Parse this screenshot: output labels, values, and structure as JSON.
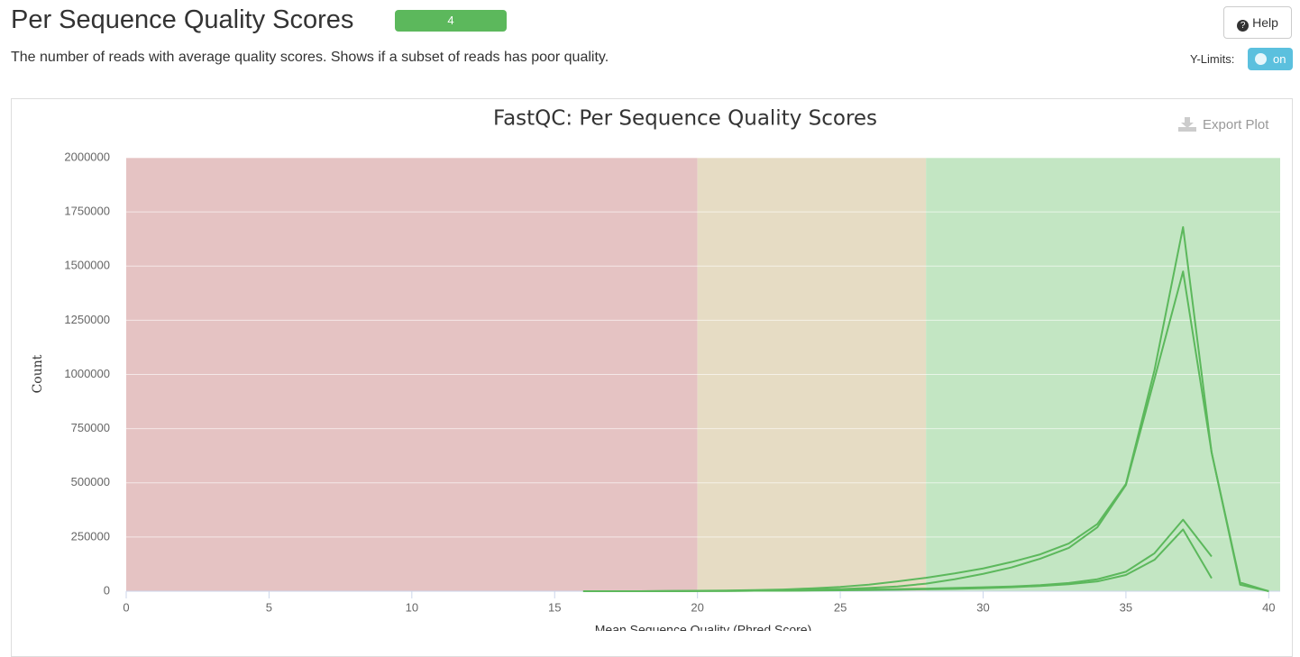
{
  "header": {
    "title": "Per Sequence Quality Scores",
    "badge": "4",
    "description": "The number of reads with average quality scores. Shows if a subset of reads has poor quality.",
    "help": "Help",
    "ylimits_label": "Y-Limits:",
    "toggle": "on"
  },
  "export": "Export Plot",
  "chart_data": {
    "type": "line",
    "title": "FastQC: Per Sequence Quality Scores",
    "x_label": "Mean Sequence Quality (Phred Score)",
    "y_label": "Count",
    "x": [
      16,
      17,
      18,
      19,
      20,
      21,
      22,
      23,
      24,
      25,
      26,
      27,
      28,
      29,
      30,
      31,
      32,
      33,
      34,
      35,
      36,
      37,
      38,
      39,
      40
    ],
    "series": [
      {
        "color": "#5cb85c",
        "values": [
          0,
          0,
          0,
          1000,
          2000,
          3000,
          5000,
          8000,
          13000,
          20000,
          30000,
          45000,
          62000,
          82000,
          105000,
          135000,
          170000,
          220000,
          310000,
          495000,
          1020000,
          1680000,
          640000,
          40000,
          0
        ]
      },
      {
        "color": "#5cb85c",
        "values": [
          0,
          0,
          0,
          1000,
          1000,
          2000,
          3000,
          5000,
          7000,
          10000,
          15000,
          22000,
          35000,
          55000,
          80000,
          110000,
          150000,
          200000,
          295000,
          490000,
          980000,
          1475000,
          640000,
          30000,
          0
        ]
      },
      {
        "color": "#5cb85c",
        "values": [
          0,
          0,
          0,
          0,
          1000,
          1000,
          2000,
          3000,
          4000,
          6000,
          8000,
          10000,
          12000,
          15000,
          18000,
          22000,
          28000,
          38000,
          55000,
          90000,
          175000,
          330000,
          160000,
          null,
          null
        ]
      },
      {
        "color": "#5cb85c",
        "values": [
          0,
          0,
          0,
          0,
          1000,
          1000,
          2000,
          2000,
          3000,
          4000,
          5000,
          7000,
          9000,
          11000,
          14000,
          18000,
          24000,
          32000,
          45000,
          75000,
          145000,
          285000,
          60000,
          null,
          null
        ]
      }
    ],
    "bands": [
      {
        "from": 0,
        "to": 20,
        "color": "#e5c3c3"
      },
      {
        "from": 20,
        "to": 28,
        "color": "#e6dcc4"
      },
      {
        "from": 28,
        "to": 40.4,
        "color": "#c3e6c3"
      }
    ],
    "xlim": [
      0,
      40.4
    ],
    "xticks": [
      0,
      5,
      10,
      15,
      20,
      25,
      30,
      35,
      40
    ],
    "ylim": [
      0,
      2000000
    ],
    "yticks": [
      0,
      250000,
      500000,
      750000,
      1000000,
      1250000,
      1500000,
      1750000,
      2000000
    ],
    "grid": true
  }
}
